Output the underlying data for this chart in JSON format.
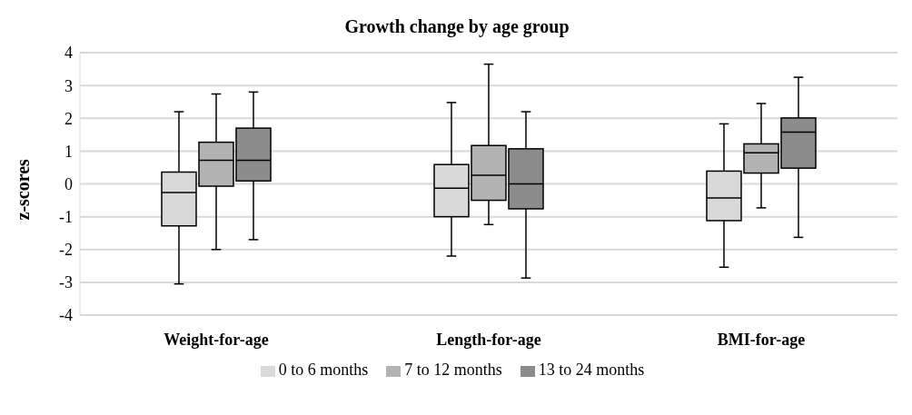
{
  "chart_data": {
    "type": "box",
    "title": "Growth change by age group",
    "ylabel": "z-scores",
    "categories": [
      "Weight-for-age",
      "Length-for-age",
      "BMI-for-age"
    ],
    "ylim": [
      -4,
      4
    ],
    "yticks": [
      -4,
      -3,
      -2,
      -1,
      0,
      1,
      2,
      3,
      4
    ],
    "grid": "y",
    "legend": "bottom",
    "series": [
      {
        "name": "0 to 6 months",
        "color": "#d9d9d9",
        "boxes": [
          {
            "low": -3.05,
            "q1": -1.28,
            "median": -0.26,
            "q3": 0.36,
            "high": 2.2
          },
          {
            "low": -2.2,
            "q1": -1.0,
            "median": -0.13,
            "q3": 0.59,
            "high": 2.48
          },
          {
            "low": -2.54,
            "q1": -1.12,
            "median": -0.43,
            "q3": 0.39,
            "high": 1.83
          }
        ]
      },
      {
        "name": "7 to 12 months",
        "color": "#b3b3b3",
        "boxes": [
          {
            "low": -2.0,
            "q1": -0.07,
            "median": 0.72,
            "q3": 1.27,
            "high": 2.74
          },
          {
            "low": -1.24,
            "q1": -0.5,
            "median": 0.26,
            "q3": 1.17,
            "high": 3.65
          },
          {
            "low": -0.73,
            "q1": 0.33,
            "median": 0.95,
            "q3": 1.22,
            "high": 2.45
          }
        ]
      },
      {
        "name": "13 to 24 months",
        "color": "#8c8c8c",
        "boxes": [
          {
            "low": -1.7,
            "q1": 0.09,
            "median": 0.72,
            "q3": 1.7,
            "high": 2.8
          },
          {
            "low": -2.87,
            "q1": -0.76,
            "median": 0.0,
            "q3": 1.07,
            "high": 2.2
          },
          {
            "low": -1.63,
            "q1": 0.48,
            "median": 1.58,
            "q3": 2.01,
            "high": 3.25
          }
        ]
      }
    ]
  }
}
